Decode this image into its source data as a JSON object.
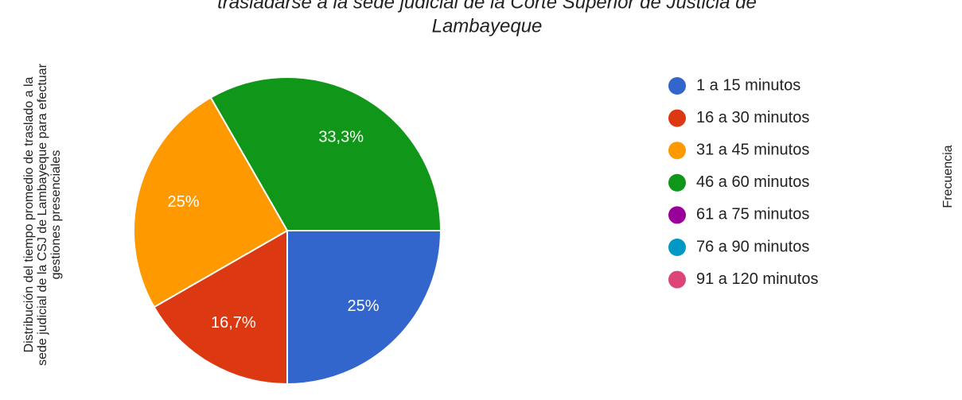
{
  "chart_data": {
    "type": "pie",
    "title": [
      "trasladarse a la sede judicial de la Corte Superior de Justicia de",
      "Lambayeque"
    ],
    "ylabel": [
      "Distribución del tiempo promedio de traslado a la",
      "sede judicial de la CSJ de Lambayeque para efectuar",
      "gestiones presenciales"
    ],
    "y2label": "Frecuencia",
    "categories": [
      "1 a 15 minutos",
      "16 a 30 minutos",
      "31 a 45 minutos",
      "46 a 60 minutos",
      "61 a 75 minutos",
      "76 a 90 minutos",
      "91 a 120 minutos"
    ],
    "values": [
      25,
      16.7,
      25,
      33.3,
      0,
      0,
      0
    ],
    "value_labels": [
      "25%",
      "16,7%",
      "25%",
      "33,3%",
      null,
      null,
      null
    ],
    "colors": [
      "#3366cc",
      "#dc3912",
      "#ff9900",
      "#109618",
      "#990099",
      "#0099c6",
      "#dd4477"
    ],
    "legend": "right"
  }
}
